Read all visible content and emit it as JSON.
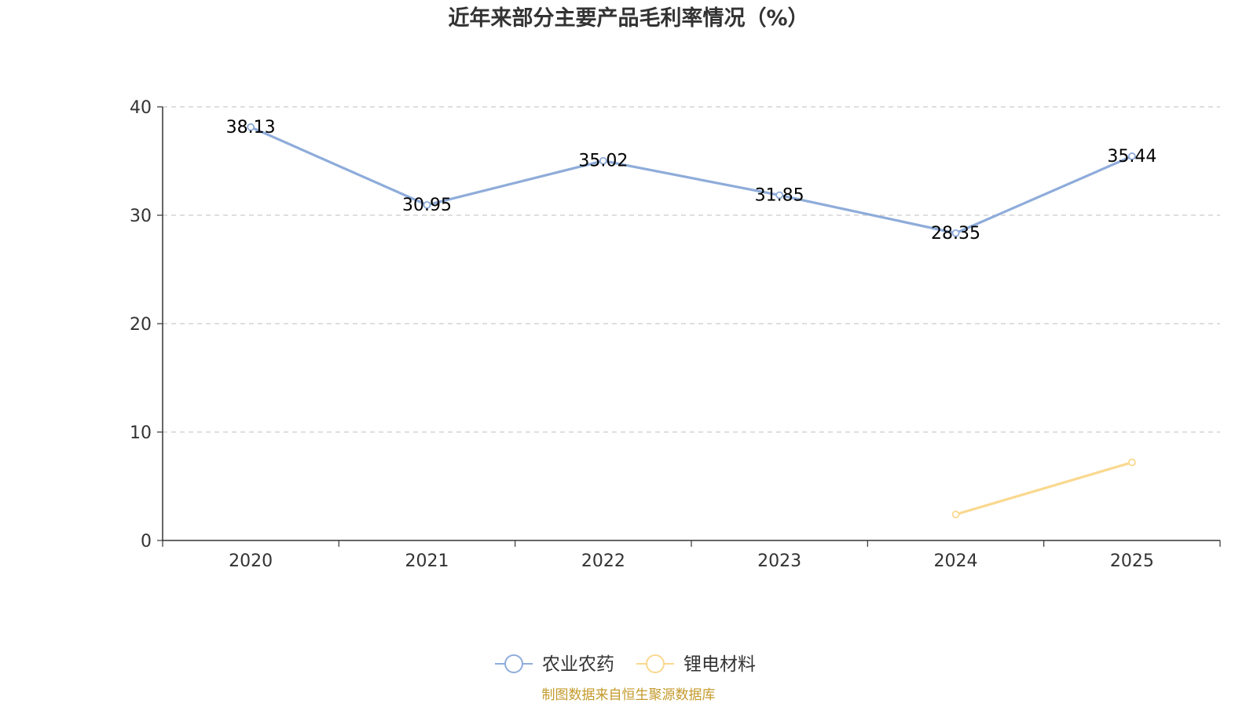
{
  "chart_data": {
    "type": "line",
    "title": "近年来部分主要产品毛利率情况（%）",
    "categories": [
      "2020",
      "2021",
      "2022",
      "2023",
      "2024",
      "2025"
    ],
    "ylim": [
      0,
      40
    ],
    "yticks": [
      0,
      10,
      20,
      30,
      40
    ],
    "grid": true,
    "legend_position": "bottom-center",
    "series": [
      {
        "name": "农业农药",
        "color": "#8eacda",
        "values": [
          38.13,
          30.95,
          35.02,
          31.85,
          28.35,
          35.44
        ],
        "labels": [
          "38.13",
          "30.95",
          "35.02",
          "31.85",
          "28.35",
          "35.44"
        ],
        "show_labels": true
      },
      {
        "name": "锂电材料",
        "color": "#fad88f",
        "values": [
          null,
          null,
          null,
          null,
          2.4,
          7.2
        ],
        "labels": [],
        "show_labels": false
      }
    ],
    "source": "制图数据来自恒生聚源数据库",
    "source_color": "#c49a2c"
  }
}
